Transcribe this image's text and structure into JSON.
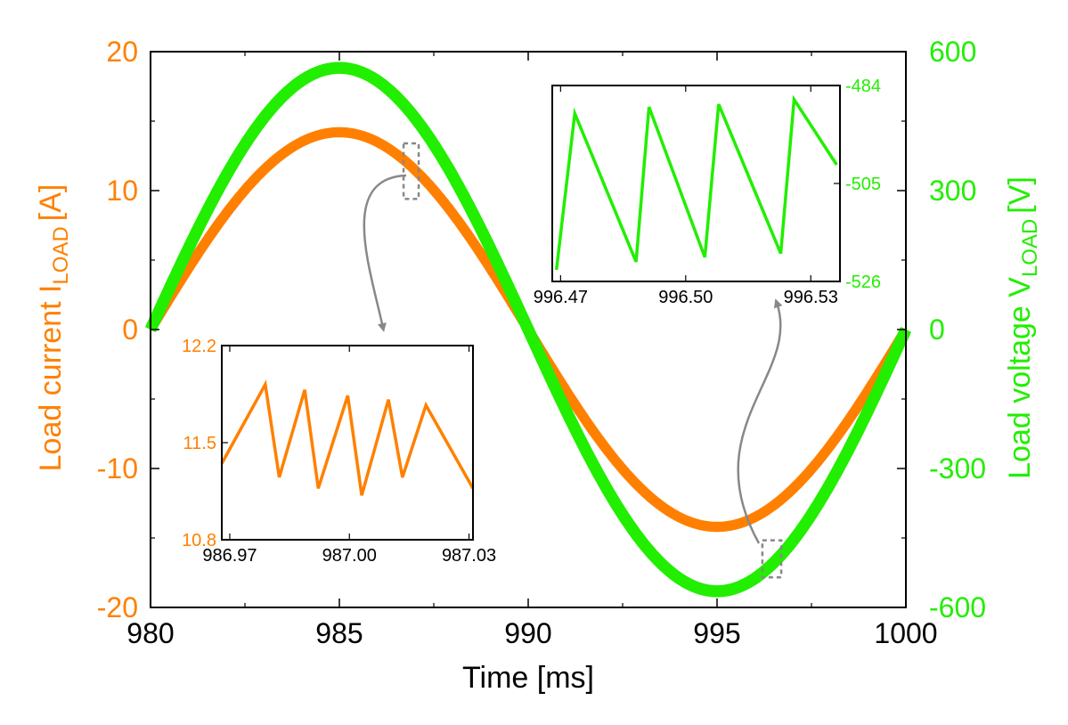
{
  "chart_data": [
    {
      "type": "line",
      "xlabel": "Time [ms]",
      "ylabel_left": "Load current I",
      "ylabel_left_subscript": "LOAD",
      "ylabel_left_unit": "[A]",
      "ylabel_right": "Load voltage V",
      "ylabel_right_subscript": "LOAD",
      "ylabel_right_unit": "[V]",
      "xlim": [
        980,
        1000
      ],
      "ylim_left": [
        -20,
        20
      ],
      "ylim_right": [
        -600,
        600
      ],
      "x_ticks": [
        "980",
        "985",
        "990",
        "995",
        "1000"
      ],
      "y_ticks_left": [
        "-20",
        "-10",
        "0",
        "10",
        "20"
      ],
      "y_ticks_right": [
        "-600",
        "-300",
        "0",
        "300",
        "600"
      ],
      "grid": false,
      "series": [
        {
          "axis": "left",
          "color": "#ff8000",
          "waveform": "sine",
          "period_ms": 20,
          "zero_crossing_ms": 980,
          "amplitude": 14.2,
          "ripple_band": 0.6,
          "peak": {
            "x": 985,
            "y": 14.2
          },
          "trough": {
            "x": 995,
            "y": -14.2
          }
        },
        {
          "axis": "right",
          "color": "#22ee00",
          "waveform": "sine",
          "period_ms": 20,
          "zero_crossing_ms": 980,
          "amplitude": 565,
          "ripple_band": 22,
          "peak": {
            "x": 985,
            "y": 565
          },
          "trough": {
            "x": 995,
            "y": -565
          }
        }
      ]
    },
    {
      "type": "line",
      "role": "inset-current",
      "color": "#ff8000",
      "xlim": [
        986.968,
        987.031
      ],
      "ylim": [
        10.8,
        12.2
      ],
      "x_ticks": [
        "986.97",
        "987.00",
        "987.03"
      ],
      "y_ticks": [
        "10.8",
        "11.5",
        "12.2"
      ],
      "x": [
        986.968,
        986.9789,
        986.9824,
        986.9888,
        986.9922,
        986.9996,
        987.0031,
        987.0098,
        987.0133,
        987.0192,
        987.031
      ],
      "y": [
        11.35,
        11.92,
        11.25,
        11.88,
        11.17,
        11.84,
        11.12,
        11.81,
        11.25,
        11.77,
        11.17
      ]
    },
    {
      "type": "line",
      "role": "inset-voltage",
      "color": "#22ee00",
      "xlim": [
        996.468,
        996.537
      ],
      "ylim": [
        -526,
        -484
      ],
      "x_ticks": [
        "996.47",
        "996.50",
        "996.53"
      ],
      "y_ticks": [
        "-484",
        "-505",
        "-526"
      ],
      "x": [
        996.469,
        996.4734,
        996.4881,
        996.4912,
        996.5046,
        996.5079,
        996.5228,
        996.526,
        996.5362
      ],
      "y": [
        -523.5,
        -490,
        -521.8,
        -488.6,
        -520.8,
        -488,
        -520,
        -487,
        -501
      ]
    }
  ],
  "annotations": {
    "arrow_color": "#888888",
    "zoom_box_1": {
      "x_range": [
        986.7,
        987.1
      ],
      "y_range": [
        9.4,
        13.4
      ],
      "axis": "left"
    },
    "zoom_box_2": {
      "x_range": [
        996.2,
        996.7
      ],
      "y_range": [
        -535,
        -455
      ],
      "axis": "right"
    }
  }
}
